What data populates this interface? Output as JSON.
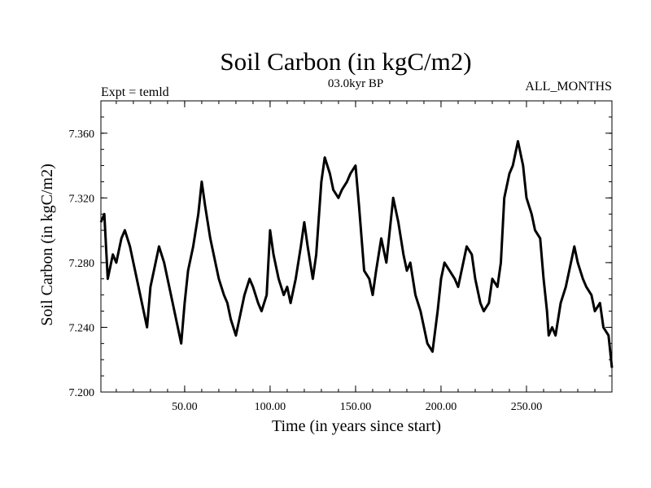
{
  "chart_data": {
    "type": "line",
    "title": "Soil Carbon (in kgC/m2)",
    "subtitle": "03.0kyr BP",
    "left_note": "Expt = temld",
    "right_note": "ALL_MONTHS",
    "xlabel": "Time (in years since start)",
    "ylabel": "Soil Carbon (in kgC/m2)",
    "xlim": [
      1,
      300
    ],
    "ylim": [
      7.2,
      7.38
    ],
    "x_ticks": [
      50,
      100,
      150,
      200,
      250
    ],
    "x_tick_labels": [
      "50.00",
      "100.00",
      "150.00",
      "200.00",
      "250.00"
    ],
    "y_ticks": [
      7.2,
      7.24,
      7.28,
      7.32,
      7.36
    ],
    "y_tick_labels": [
      "7.200",
      "7.240",
      "7.280",
      "7.320",
      "7.360"
    ],
    "grid": false,
    "series": [
      {
        "color": "#000000",
        "x": [
          1,
          3,
          5,
          8,
          10,
          13,
          15,
          18,
          20,
          23,
          25,
          28,
          30,
          33,
          35,
          38,
          40,
          43,
          45,
          48,
          50,
          52,
          55,
          58,
          60,
          62,
          65,
          68,
          70,
          73,
          75,
          77,
          80,
          82,
          85,
          88,
          90,
          93,
          95,
          98,
          100,
          102,
          105,
          108,
          110,
          112,
          115,
          118,
          120,
          122,
          125,
          127,
          130,
          132,
          135,
          137,
          140,
          142,
          145,
          147,
          150,
          152,
          155,
          158,
          160,
          162,
          165,
          168,
          170,
          172,
          175,
          178,
          180,
          182,
          185,
          188,
          190,
          192,
          195,
          198,
          200,
          202,
          205,
          208,
          210,
          213,
          215,
          218,
          220,
          223,
          225,
          228,
          230,
          233,
          235,
          237,
          240,
          242,
          245,
          248,
          250,
          253,
          255,
          258,
          260,
          262,
          263,
          265,
          267,
          270,
          273,
          275,
          278,
          280,
          283,
          285,
          288,
          290,
          293,
          295,
          298,
          300
        ],
        "y": [
          7.305,
          7.31,
          7.27,
          7.285,
          7.28,
          7.295,
          7.3,
          7.29,
          7.28,
          7.265,
          7.255,
          7.24,
          7.265,
          7.28,
          7.29,
          7.28,
          7.27,
          7.255,
          7.245,
          7.23,
          7.255,
          7.275,
          7.29,
          7.31,
          7.33,
          7.315,
          7.295,
          7.28,
          7.27,
          7.26,
          7.255,
          7.245,
          7.235,
          7.245,
          7.26,
          7.27,
          7.265,
          7.255,
          7.25,
          7.26,
          7.3,
          7.285,
          7.27,
          7.26,
          7.265,
          7.255,
          7.27,
          7.29,
          7.305,
          7.29,
          7.27,
          7.285,
          7.33,
          7.345,
          7.335,
          7.325,
          7.32,
          7.325,
          7.33,
          7.335,
          7.34,
          7.315,
          7.275,
          7.27,
          7.26,
          7.275,
          7.295,
          7.28,
          7.3,
          7.32,
          7.305,
          7.285,
          7.275,
          7.28,
          7.26,
          7.25,
          7.24,
          7.23,
          7.225,
          7.25,
          7.27,
          7.28,
          7.275,
          7.27,
          7.265,
          7.28,
          7.29,
          7.285,
          7.27,
          7.255,
          7.25,
          7.255,
          7.27,
          7.265,
          7.28,
          7.32,
          7.335,
          7.34,
          7.355,
          7.34,
          7.32,
          7.31,
          7.3,
          7.295,
          7.27,
          7.25,
          7.235,
          7.24,
          7.235,
          7.255,
          7.265,
          7.275,
          7.29,
          7.28,
          7.27,
          7.265,
          7.26,
          7.25,
          7.255,
          7.24,
          7.235,
          7.215
        ]
      }
    ]
  }
}
